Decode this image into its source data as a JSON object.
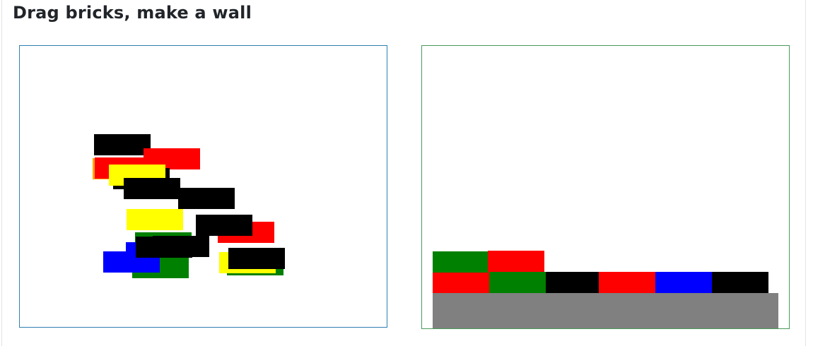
{
  "header": {
    "title": "Drag bricks, make a wall"
  },
  "colors": {
    "black": "#000000",
    "red": "#ff0000",
    "yellow": "#ffff00",
    "green": "#008000",
    "blue": "#0000ff",
    "orange": "#ffa500",
    "ground": "#808080"
  },
  "pile": {
    "bricks": [
      "black",
      "red",
      "yellow",
      "black",
      "black",
      "yellow",
      "red",
      "black",
      "green",
      "blue",
      "blue",
      "green",
      "black",
      "black",
      "yellow",
      "green",
      "black"
    ]
  },
  "wall": {
    "bottom_row": [
      "red",
      "green",
      "black",
      "red",
      "blue",
      "black"
    ],
    "second_row": [
      "green",
      "red"
    ]
  }
}
